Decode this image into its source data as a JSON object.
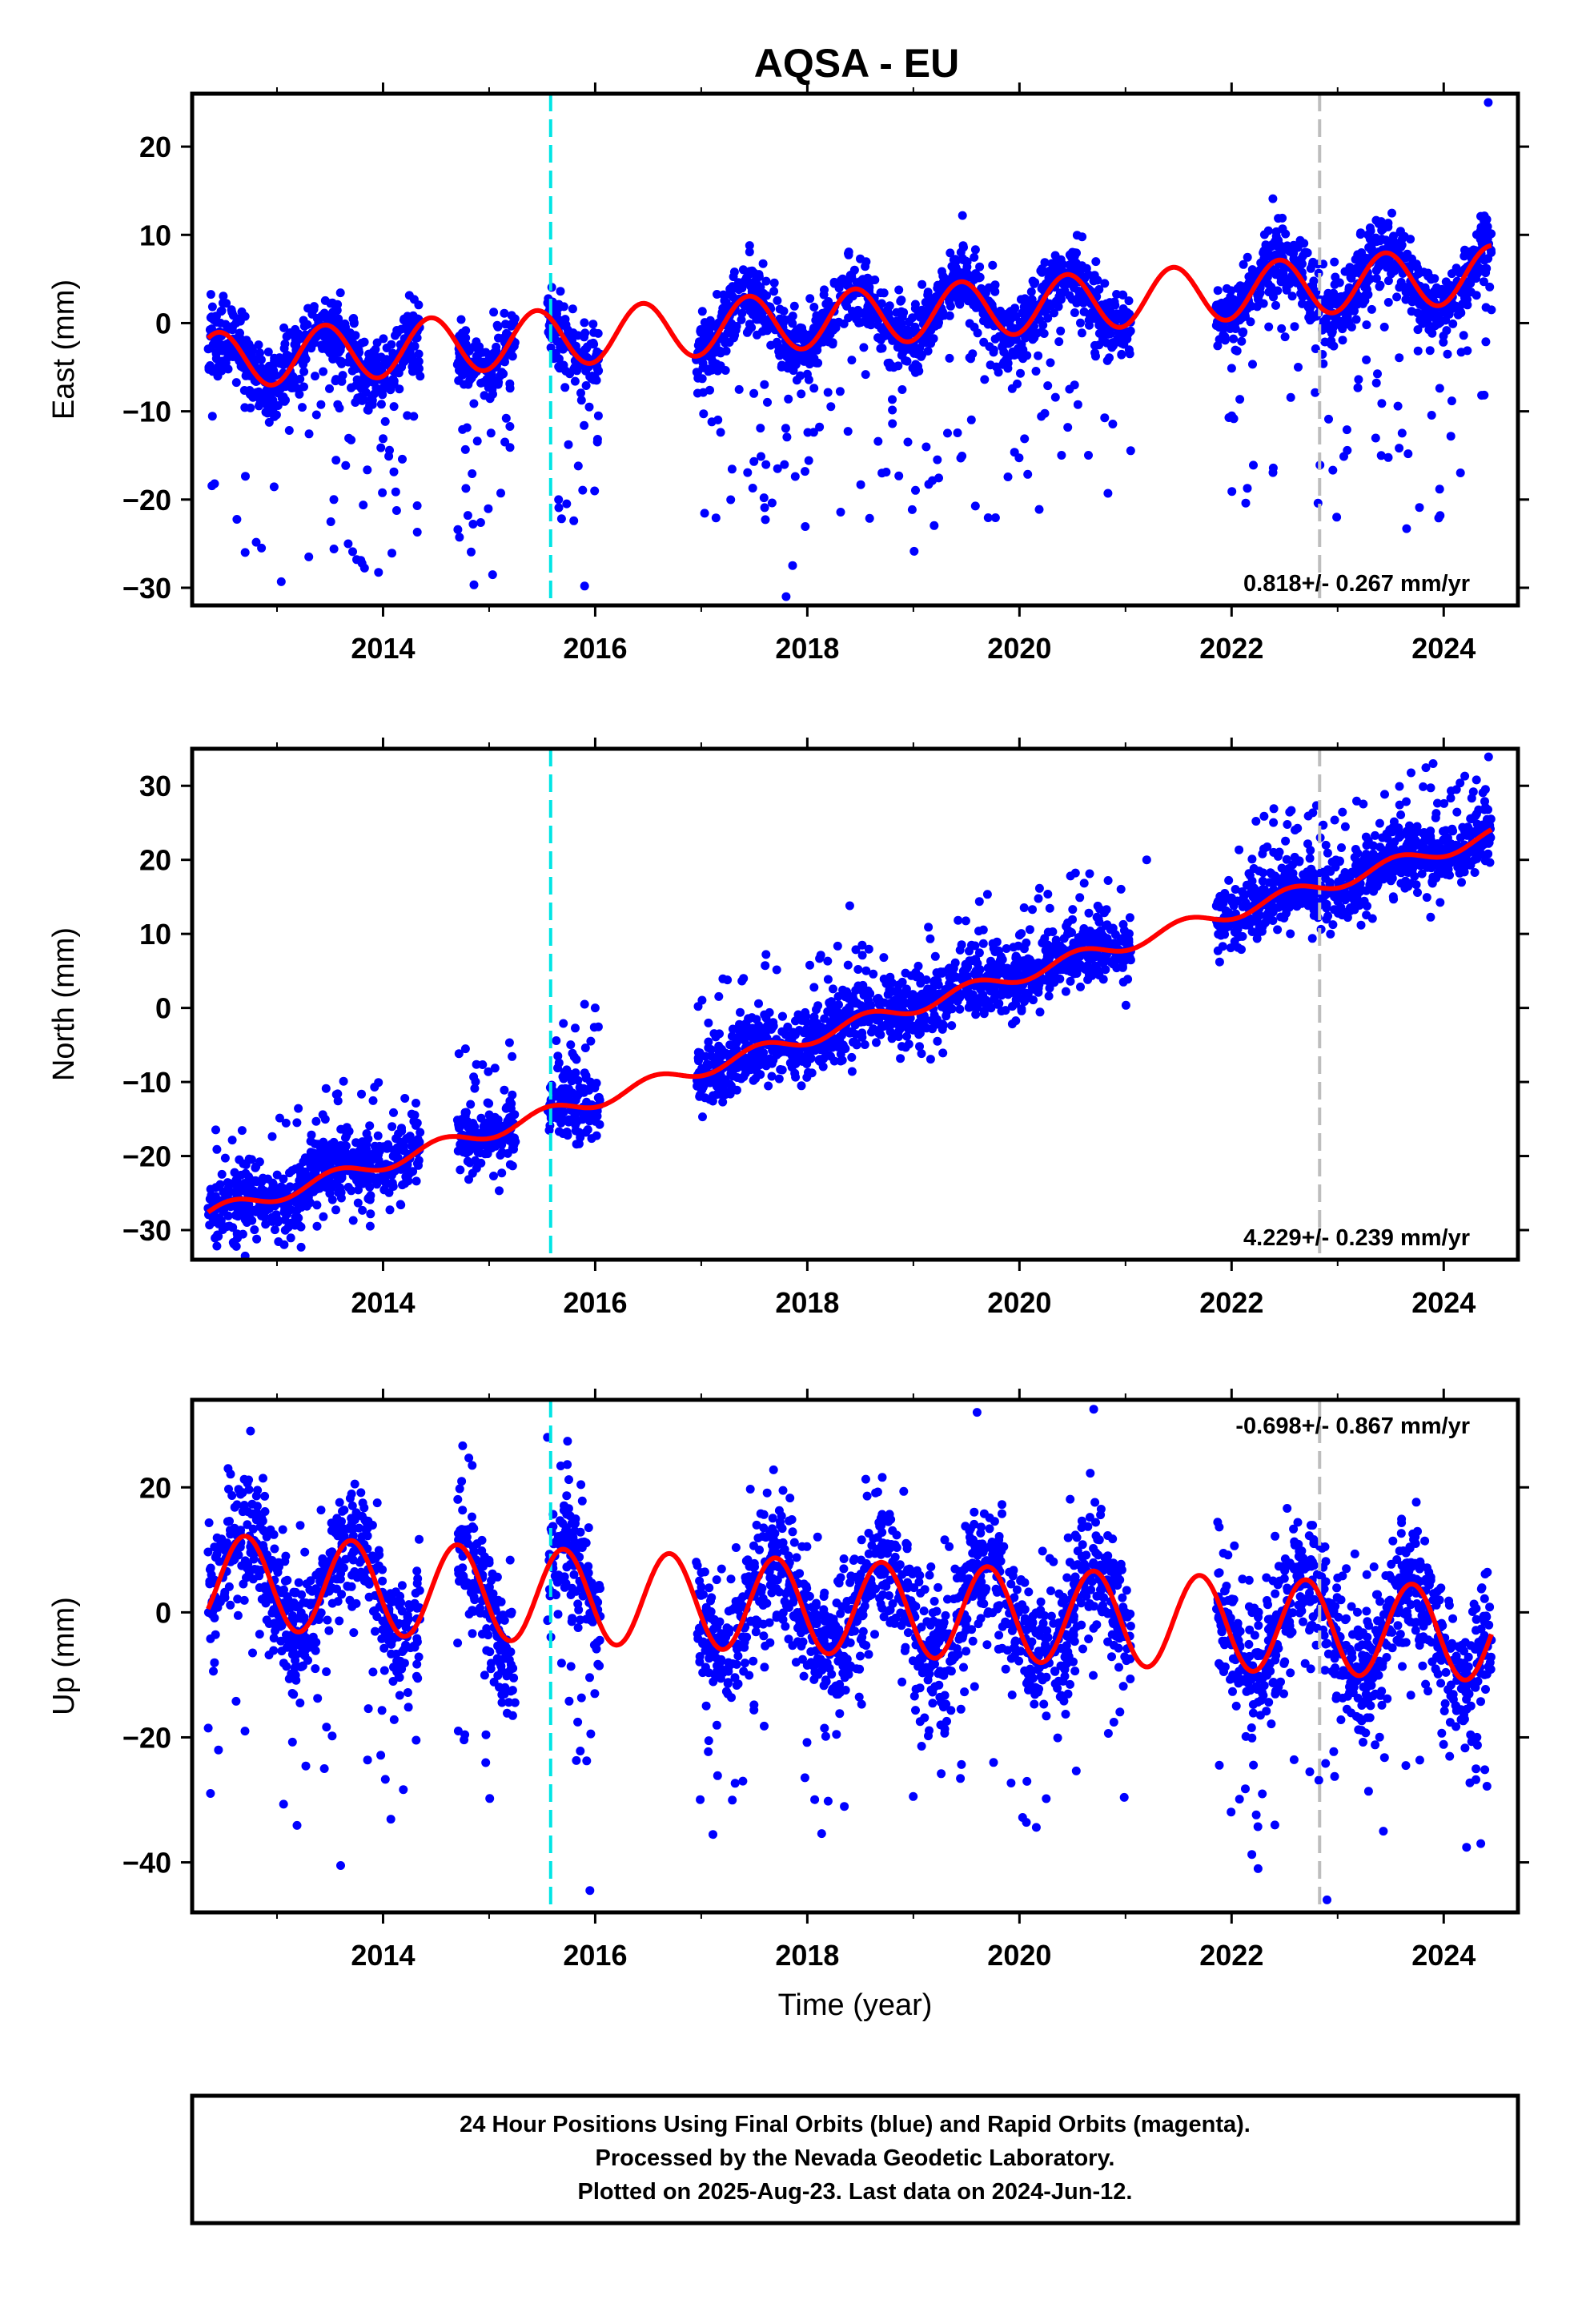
{
  "title": "AQSA - EU",
  "footer": {
    "lines": [
      "24 Hour Positions Using Final Orbits (blue) and Rapid Orbits (magenta).",
      "Processed by the Nevada Geodetic Laboratory.",
      "Plotted on 2025-Aug-23. Last data on 2024-Jun-12."
    ]
  },
  "colors": {
    "points": "#0000ff",
    "model": "#ff0000",
    "antenna_change": "#00e5e5",
    "other_event": "#bdbdbd"
  },
  "chart_data": [
    {
      "type": "scatter",
      "component": "east",
      "ylabel": "East (mm)",
      "xlabel": "",
      "xlim": [
        2012.2,
        2024.7
      ],
      "ylim": [
        -32,
        26
      ],
      "yticks": [
        20,
        10,
        0,
        -10,
        -20,
        -30
      ],
      "xticks": [
        2014,
        2016,
        2018,
        2020,
        2022,
        2024
      ],
      "rate_label": "0.818+/- 0.267 mm/yr",
      "rate_position": "bottom-right",
      "events": [
        {
          "x": 2015.58,
          "kind": "antenna_change"
        },
        {
          "x": 2022.83,
          "kind": "other_event"
        }
      ],
      "model": {
        "rate": 0.818,
        "offset_at_2018": 0.3,
        "annual_amplitude": 3.2,
        "annual_phase": 0.2
      },
      "data_segments": [
        [
          2012.35,
          2014.35
        ],
        [
          2014.7,
          2015.25
        ],
        [
          2015.55,
          2016.05
        ],
        [
          2016.95,
          2021.05
        ],
        [
          2021.85,
          2024.45
        ]
      ],
      "scatter_sd": 2.0,
      "outlier_fraction": 0.12,
      "outlier_range": [
        -25,
        4
      ],
      "extreme_points": [
        [
          2024.42,
          25.0
        ],
        [
          2017.8,
          -31.0
        ],
        [
          2015.9,
          -29.8
        ],
        [
          2013.3,
          -26.5
        ],
        [
          2012.7,
          -26.0
        ],
        [
          2023.65,
          -23.3
        ],
        [
          2014.8,
          -21.8
        ]
      ]
    },
    {
      "type": "scatter",
      "component": "north",
      "ylabel": "North (mm)",
      "xlabel": "",
      "xlim": [
        2012.2,
        2024.7
      ],
      "ylim": [
        -34,
        35
      ],
      "yticks": [
        30,
        20,
        10,
        0,
        -10,
        -20,
        -30
      ],
      "xticks": [
        2014,
        2016,
        2018,
        2020,
        2022,
        2024
      ],
      "rate_label": "4.229+/- 0.239 mm/yr",
      "rate_position": "bottom-right",
      "events": [
        {
          "x": 2015.58,
          "kind": "antenna_change"
        },
        {
          "x": 2022.83,
          "kind": "other_event"
        }
      ],
      "model": {
        "rate": 4.229,
        "offset_at_2018": -4.0,
        "annual_amplitude": 1.0,
        "annual_phase": 0.3
      },
      "data_segments": [
        [
          2012.35,
          2014.35
        ],
        [
          2014.7,
          2015.25
        ],
        [
          2015.55,
          2016.05
        ],
        [
          2016.95,
          2021.05
        ],
        [
          2021.85,
          2024.45
        ]
      ],
      "scatter_sd": 2.3,
      "outlier_fraction": 0.1,
      "outlier_range": [
        -2,
        12
      ],
      "extreme_points": [
        [
          2023.9,
          33.0
        ],
        [
          2012.7,
          -33.5
        ],
        [
          2015.9,
          0.5
        ],
        [
          2016.0,
          0.0
        ],
        [
          2018.4,
          13.8
        ],
        [
          2021.2,
          20.0
        ]
      ]
    },
    {
      "type": "scatter",
      "component": "up",
      "ylabel": "Up (mm)",
      "xlabel": "Time (year)",
      "xlim": [
        2012.2,
        2024.7
      ],
      "ylim": [
        -48,
        34
      ],
      "yticks": [
        20,
        0,
        -20,
        -40
      ],
      "xticks": [
        2014,
        2016,
        2018,
        2020,
        2022,
        2024
      ],
      "rate_label": "-0.698+/- 0.867 mm/yr",
      "rate_position": "top-right",
      "events": [
        {
          "x": 2015.58,
          "kind": "antenna_change"
        },
        {
          "x": 2022.83,
          "kind": "other_event"
        }
      ],
      "model": {
        "rate": -0.698,
        "offset_at_2018": 1.0,
        "annual_amplitude": 7.5,
        "annual_phase": 0.45
      },
      "data_segments": [
        [
          2012.35,
          2014.35
        ],
        [
          2014.7,
          2015.25
        ],
        [
          2015.55,
          2016.05
        ],
        [
          2016.95,
          2021.05
        ],
        [
          2021.85,
          2024.45
        ]
      ],
      "scatter_sd": 5.0,
      "outlier_fraction": 0.1,
      "outlier_range": [
        -32,
        18
      ],
      "extreme_points": [
        [
          2012.75,
          29.0
        ],
        [
          2015.55,
          28.0
        ],
        [
          2019.6,
          32.0
        ],
        [
          2020.7,
          32.5
        ],
        [
          2015.95,
          -44.5
        ],
        [
          2022.9,
          -46.0
        ],
        [
          2022.25,
          -41.0
        ],
        [
          2013.6,
          -40.5
        ],
        [
          2024.35,
          -37.0
        ]
      ]
    }
  ]
}
